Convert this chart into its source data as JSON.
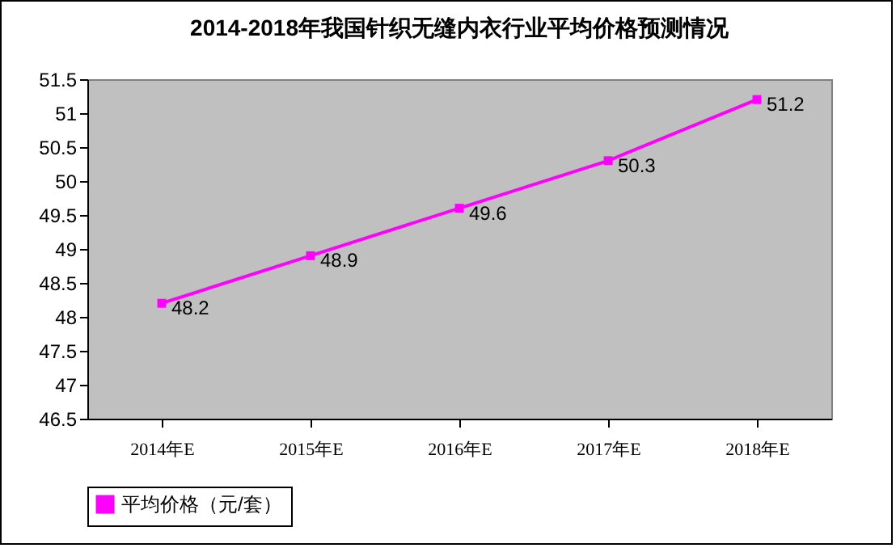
{
  "chart_data": {
    "type": "line",
    "title": "2014-2018年我国针织无缝内衣行业平均价格预测情况",
    "categories": [
      "2014年E",
      "2015年E",
      "2016年E",
      "2017年E",
      "2018年E"
    ],
    "series": [
      {
        "name": "平均价格（元/套）",
        "color": "#ff00ff",
        "values": [
          48.2,
          48.9,
          49.6,
          50.3,
          51.2
        ]
      }
    ],
    "ylim": [
      46.5,
      51.5
    ],
    "yticks": [
      46.5,
      47,
      47.5,
      48,
      48.5,
      49,
      49.5,
      50,
      50.5,
      51,
      51.5
    ],
    "data_labels": true,
    "marker": "square",
    "legend": "bottom",
    "grid": false
  }
}
